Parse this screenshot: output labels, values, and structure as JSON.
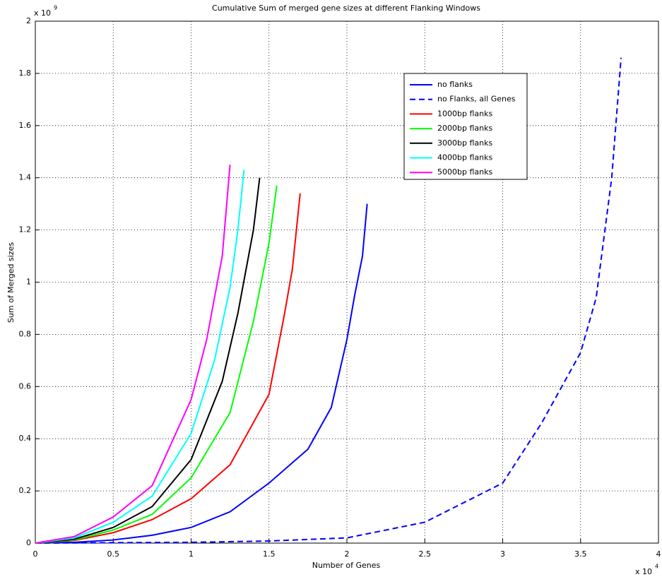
{
  "chart_data": {
    "type": "line",
    "title": "Cumulative Sum of merged gene sizes at different Flanking Windows",
    "xlabel": "Number of Genes",
    "ylabel": "Sum of Merged sizes",
    "x_multiplier": {
      "base": "x 10",
      "exponent": "4"
    },
    "y_multiplier": {
      "base": "x 10",
      "exponent": "9"
    },
    "xlim": [
      0,
      4
    ],
    "ylim": [
      0,
      2
    ],
    "xticks": [
      0,
      0.5,
      1,
      1.5,
      2,
      2.5,
      3,
      3.5,
      4
    ],
    "yticks": [
      0,
      0.2,
      0.4,
      0.6,
      0.8,
      1,
      1.2,
      1.4,
      1.6,
      1.8,
      2
    ],
    "grid": true,
    "legend": "upper-right",
    "series": [
      {
        "name": "no flanks",
        "color": "#0000ff",
        "linestyle": "solid",
        "x": [
          0,
          0.25,
          0.5,
          0.75,
          1,
          1.25,
          1.5,
          1.75,
          1.9,
          2,
          2.05,
          2.1,
          2.13
        ],
        "values": [
          0,
          0.003,
          0.012,
          0.03,
          0.06,
          0.12,
          0.23,
          0.36,
          0.52,
          0.78,
          0.95,
          1.1,
          1.3
        ]
      },
      {
        "name": "no Flanks, all Genes",
        "color": "#0000ff",
        "linestyle": "dashed",
        "x": [
          0,
          1,
          1.5,
          2,
          2.5,
          3,
          3.25,
          3.5,
          3.6,
          3.7,
          3.76
        ],
        "values": [
          0,
          0.003,
          0.008,
          0.02,
          0.08,
          0.23,
          0.46,
          0.73,
          0.94,
          1.4,
          1.86
        ]
      },
      {
        "name": "1000bp flanks",
        "color": "#ff0000",
        "linestyle": "solid",
        "x": [
          0,
          0.25,
          0.5,
          0.75,
          1,
          1.25,
          1.5,
          1.6,
          1.65,
          1.7
        ],
        "values": [
          0,
          0.01,
          0.04,
          0.09,
          0.17,
          0.3,
          0.57,
          0.88,
          1.05,
          1.34
        ]
      },
      {
        "name": "2000bp flanks",
        "color": "#00ff00",
        "linestyle": "solid",
        "x": [
          0,
          0.25,
          0.5,
          0.75,
          1,
          1.25,
          1.4,
          1.5,
          1.55
        ],
        "values": [
          0,
          0.012,
          0.05,
          0.11,
          0.25,
          0.5,
          0.85,
          1.15,
          1.37
        ]
      },
      {
        "name": "3000bp flanks",
        "color": "#000000",
        "linestyle": "solid",
        "x": [
          0,
          0.25,
          0.5,
          0.75,
          1,
          1.2,
          1.3,
          1.4,
          1.44
        ],
        "values": [
          0,
          0.015,
          0.06,
          0.14,
          0.32,
          0.62,
          0.88,
          1.2,
          1.4
        ]
      },
      {
        "name": "4000bp flanks",
        "color": "#00ffff",
        "linestyle": "solid",
        "x": [
          0,
          0.25,
          0.5,
          0.75,
          1,
          1.15,
          1.25,
          1.3,
          1.34
        ],
        "values": [
          0,
          0.02,
          0.08,
          0.18,
          0.42,
          0.7,
          0.98,
          1.2,
          1.43
        ]
      },
      {
        "name": "5000bp flanks",
        "color": "#ff00ff",
        "linestyle": "solid",
        "x": [
          0,
          0.25,
          0.5,
          0.75,
          1,
          1.1,
          1.2,
          1.25
        ],
        "values": [
          0,
          0.025,
          0.1,
          0.22,
          0.55,
          0.78,
          1.1,
          1.45
        ]
      }
    ]
  }
}
